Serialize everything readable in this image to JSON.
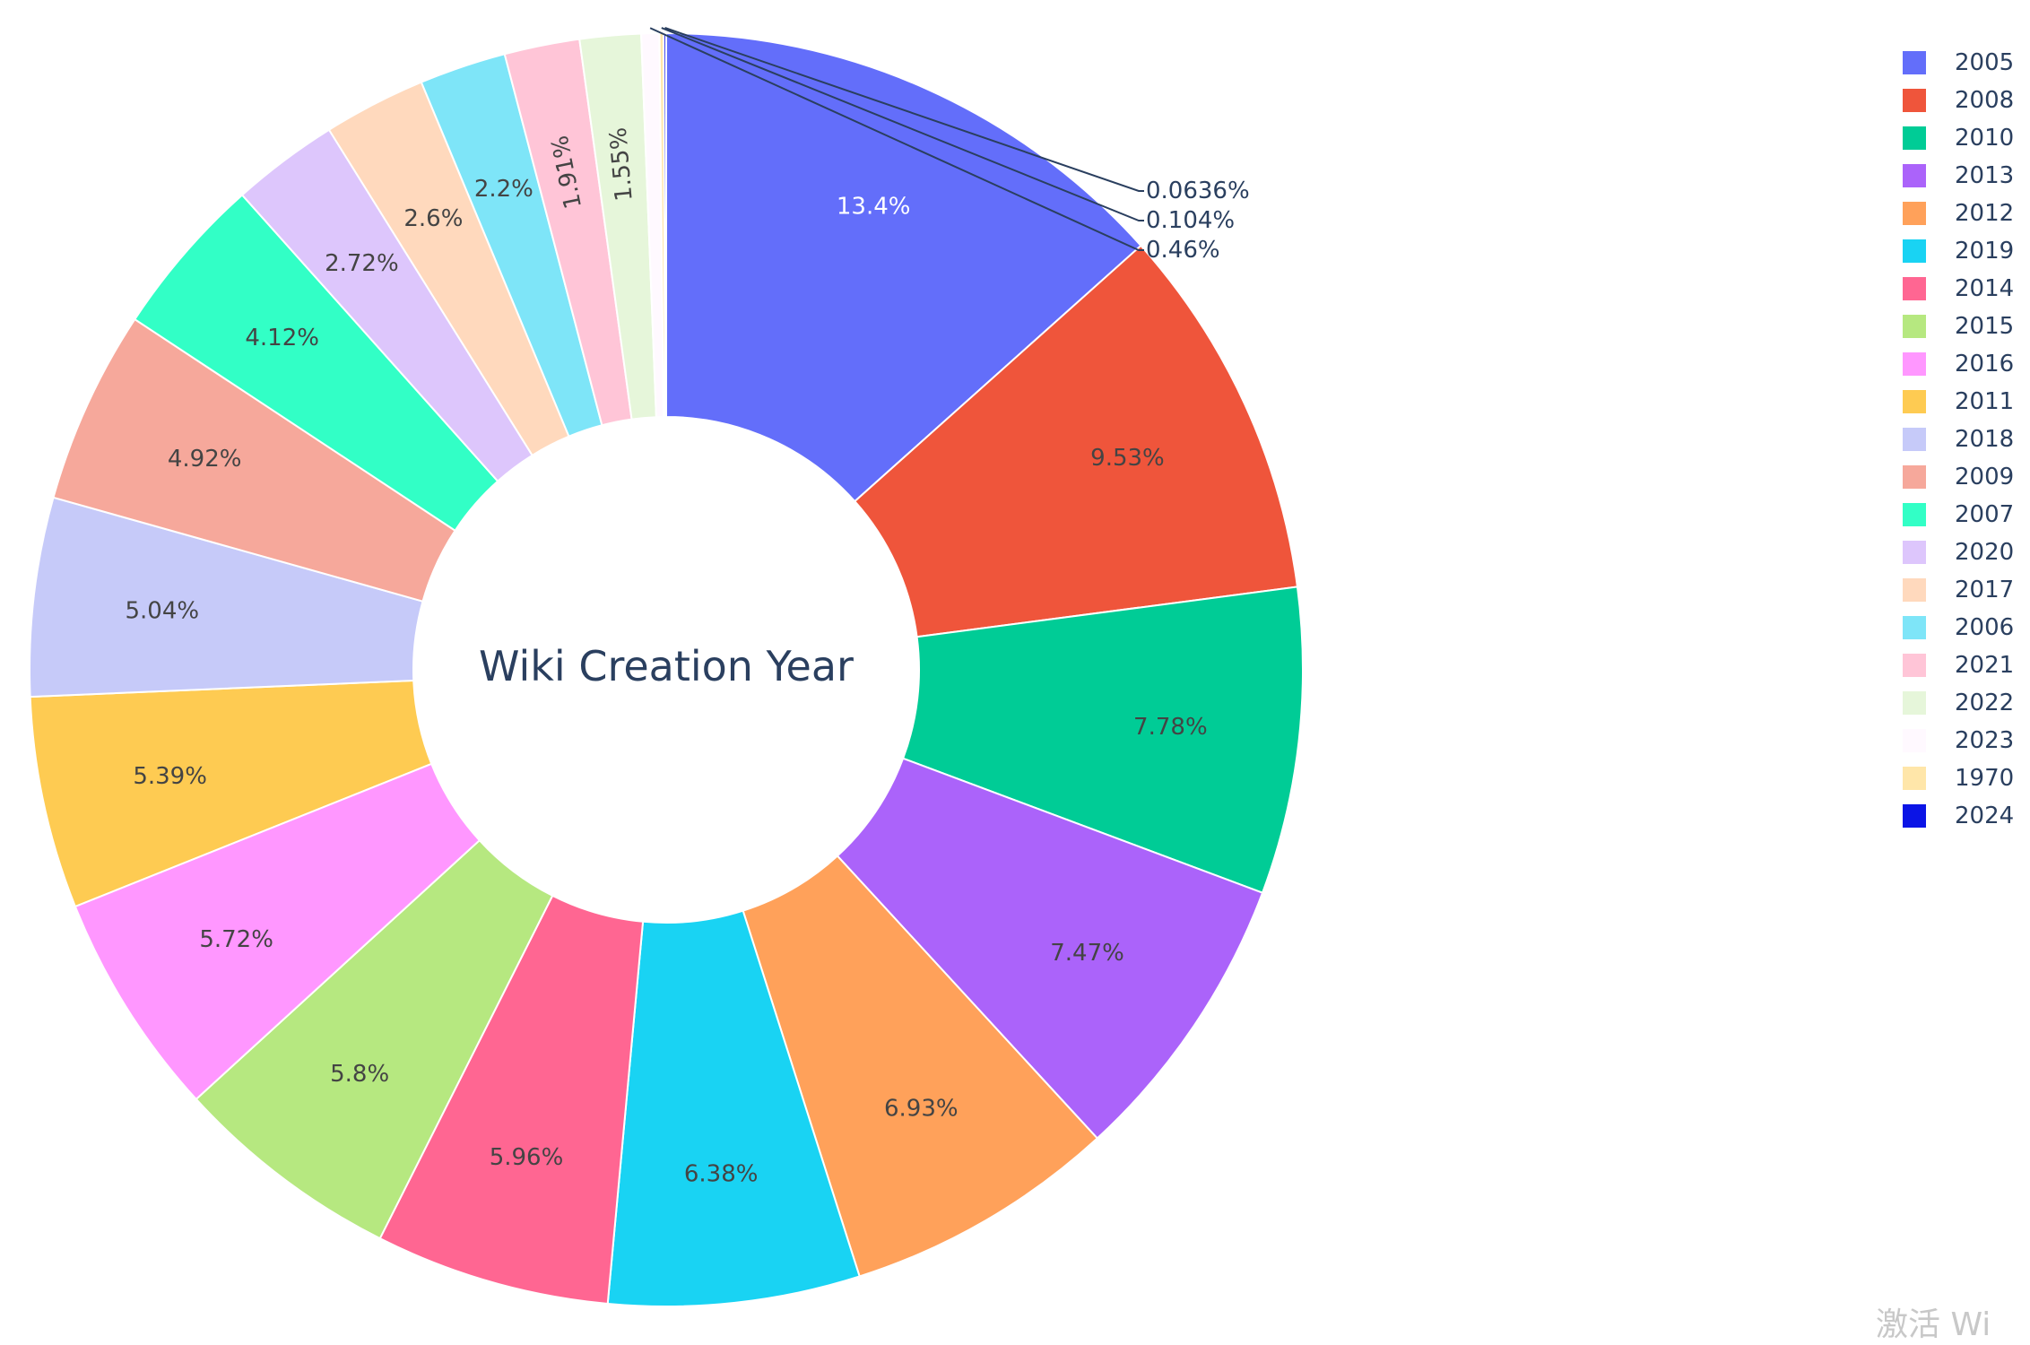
{
  "chart_data": {
    "type": "pie",
    "hole": true,
    "title": "Wiki Creation Year",
    "legend_position": "top-right",
    "slices": [
      {
        "label": "2005",
        "value": 13.4,
        "text": "13.4%",
        "color": "#636efa",
        "text_color": "#ffffff"
      },
      {
        "label": "2008",
        "value": 9.53,
        "text": "9.53%",
        "color": "#ef553b",
        "text_color": "#444444"
      },
      {
        "label": "2010",
        "value": 7.78,
        "text": "7.78%",
        "color": "#00cc96",
        "text_color": "#444444"
      },
      {
        "label": "2013",
        "value": 7.47,
        "text": "7.47%",
        "color": "#ab63fa",
        "text_color": "#444444"
      },
      {
        "label": "2012",
        "value": 6.93,
        "text": "6.93%",
        "color": "#ffa15a",
        "text_color": "#444444"
      },
      {
        "label": "2019",
        "value": 6.38,
        "text": "6.38%",
        "color": "#19d3f3",
        "text_color": "#444444"
      },
      {
        "label": "2014",
        "value": 5.96,
        "text": "5.96%",
        "color": "#ff6692",
        "text_color": "#444444"
      },
      {
        "label": "2015",
        "value": 5.8,
        "text": "5.8%",
        "color": "#b6e880",
        "text_color": "#444444"
      },
      {
        "label": "2016",
        "value": 5.72,
        "text": "5.72%",
        "color": "#ff97ff",
        "text_color": "#444444"
      },
      {
        "label": "2011",
        "value": 5.39,
        "text": "5.39%",
        "color": "#fecb52",
        "text_color": "#444444"
      },
      {
        "label": "2018",
        "value": 5.04,
        "text": "5.04%",
        "color": "#c6caf9",
        "text_color": "#444444"
      },
      {
        "label": "2009",
        "value": 4.92,
        "text": "4.92%",
        "color": "#f6a89b",
        "text_color": "#444444"
      },
      {
        "label": "2007",
        "value": 4.12,
        "text": "4.12%",
        "color": "#32ffc6",
        "text_color": "#444444"
      },
      {
        "label": "2020",
        "value": 2.72,
        "text": "2.72%",
        "color": "#ddc6fc",
        "text_color": "#444444"
      },
      {
        "label": "2017",
        "value": 2.6,
        "text": "2.6%",
        "color": "#ffd9bd",
        "text_color": "#444444"
      },
      {
        "label": "2006",
        "value": 2.2,
        "text": "2.2%",
        "color": "#7ee5f8",
        "text_color": "#444444"
      },
      {
        "label": "2021",
        "value": 1.91,
        "text": "1.91%",
        "color": "#ffc5d7",
        "text_color": "#444444"
      },
      {
        "label": "2022",
        "value": 1.55,
        "text": "1.55%",
        "color": "#e6f6da",
        "text_color": "#444444"
      },
      {
        "label": "2023",
        "value": 0.46,
        "text": "0.46%",
        "color": "#fff9ff",
        "text_color": "#2a3f5f"
      },
      {
        "label": "1970",
        "value": 0.104,
        "text": "0.104%",
        "color": "#ffe6a9",
        "text_color": "#2a3f5f"
      },
      {
        "label": "2024",
        "value": 0.0636,
        "text": "0.0636%",
        "color": "#0b14e6",
        "text_color": "#2a3f5f"
      }
    ],
    "legend_order": [
      "2005",
      "2008",
      "2010",
      "2013",
      "2012",
      "2019",
      "2014",
      "2015",
      "2016",
      "2011",
      "2018",
      "2009",
      "2007",
      "2020",
      "2017",
      "2006",
      "2021",
      "2022",
      "2023",
      "1970",
      "2024"
    ]
  },
  "watermark_text": "激活 Wi"
}
